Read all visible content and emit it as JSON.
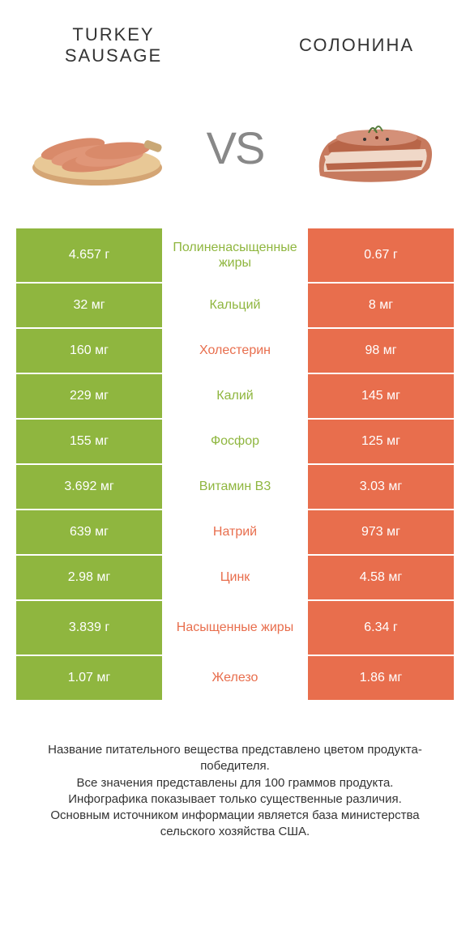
{
  "colors": {
    "green": "#8fb63f",
    "orange": "#e86e4d",
    "text": "#333333",
    "vs": "#888888",
    "background": "#ffffff"
  },
  "header": {
    "left_title": "TURKEY SAUSAGE",
    "right_title": "СОЛОНИНА",
    "vs_label": "VS"
  },
  "table": {
    "type": "comparison-table",
    "rows": [
      {
        "left": "4.657 г",
        "label": "Полиненасыщенные жиры",
        "right": "0.67 г",
        "winner": "left",
        "tall": true
      },
      {
        "left": "32 мг",
        "label": "Кальций",
        "right": "8 мг",
        "winner": "left",
        "tall": false
      },
      {
        "left": "160 мг",
        "label": "Холестерин",
        "right": "98 мг",
        "winner": "right",
        "tall": false
      },
      {
        "left": "229 мг",
        "label": "Калий",
        "right": "145 мг",
        "winner": "left",
        "tall": false
      },
      {
        "left": "155 мг",
        "label": "Фосфор",
        "right": "125 мг",
        "winner": "left",
        "tall": false
      },
      {
        "left": "3.692 мг",
        "label": "Витамин B3",
        "right": "3.03 мг",
        "winner": "left",
        "tall": false
      },
      {
        "left": "639 мг",
        "label": "Натрий",
        "right": "973 мг",
        "winner": "right",
        "tall": false
      },
      {
        "left": "2.98 мг",
        "label": "Цинк",
        "right": "4.58 мг",
        "winner": "right",
        "tall": false
      },
      {
        "left": "3.839 г",
        "label": "Насыщенные жиры",
        "right": "6.34 г",
        "winner": "right",
        "tall": true
      },
      {
        "left": "1.07 мг",
        "label": "Железо",
        "right": "1.86 мг",
        "winner": "right",
        "tall": false
      }
    ]
  },
  "footer": {
    "line1": "Название питательного вещества представлено цветом продукта-победителя.",
    "line2": "Все значения представлены для 100 граммов продукта.",
    "line3": "Инфографика показывает только существенные различия.",
    "line4": "Основным источником информации является база министерства сельского хозяйства США."
  }
}
